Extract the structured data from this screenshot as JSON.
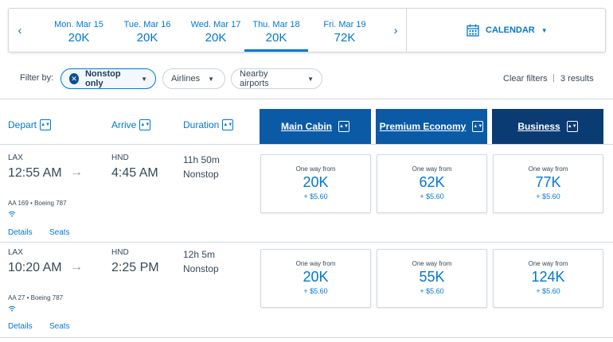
{
  "dates": {
    "prev_arrow": "‹",
    "next_arrow": "›",
    "items": [
      {
        "label": "Mon. Mar 15",
        "price": "20K"
      },
      {
        "label": "Tue. Mar 16",
        "price": "20K"
      },
      {
        "label": "Wed. Mar 17",
        "price": "20K"
      },
      {
        "label": "Thu. Mar 18",
        "price": "20K"
      },
      {
        "label": "Fri. Mar 19",
        "price": "72K"
      }
    ],
    "calendar_label": "CALENDAR"
  },
  "filters": {
    "label": "Filter by:",
    "nonstop": "Nonstop only",
    "airlines": "Airlines",
    "nearby": "Nearby airports",
    "clear": "Clear filters",
    "separator": "|",
    "results": "3 results"
  },
  "columns": {
    "depart": "Depart",
    "arrive": "Arrive",
    "duration": "Duration",
    "main_cabin": "Main Cabin",
    "premium_economy": "Premium Economy",
    "business": "Business"
  },
  "flights": [
    {
      "dep_airport": "LAX",
      "dep_time": "12:55 AM",
      "arr_airport": "HND",
      "arr_time": "4:45 AM",
      "duration": "11h 50m",
      "stops": "Nonstop",
      "flight": "AA 169",
      "aircraft": "Boeing 787",
      "details": "Details",
      "seats": "Seats",
      "fares": [
        {
          "label": "One way from",
          "points": "20K",
          "tax": "+ $5.60"
        },
        {
          "label": "One way from",
          "points": "62K",
          "tax": "+ $5.60"
        },
        {
          "label": "One way from",
          "points": "77K",
          "tax": "+ $5.60"
        }
      ]
    },
    {
      "dep_airport": "LAX",
      "dep_time": "10:20 AM",
      "arr_airport": "HND",
      "arr_time": "2:25 PM",
      "duration": "12h 5m",
      "stops": "Nonstop",
      "flight": "AA 27",
      "aircraft": "Boeing 787",
      "details": "Details",
      "seats": "Seats",
      "fares": [
        {
          "label": "One way from",
          "points": "20K",
          "tax": "+ $5.60"
        },
        {
          "label": "One way from",
          "points": "55K",
          "tax": "+ $5.60"
        },
        {
          "label": "One way from",
          "points": "124K",
          "tax": "+ $5.60"
        }
      ]
    }
  ],
  "colors": {
    "accent": "#0078d2",
    "cabin_header": "#0b5aa6",
    "business_header": "#0a3b73",
    "text": "#36495a"
  }
}
